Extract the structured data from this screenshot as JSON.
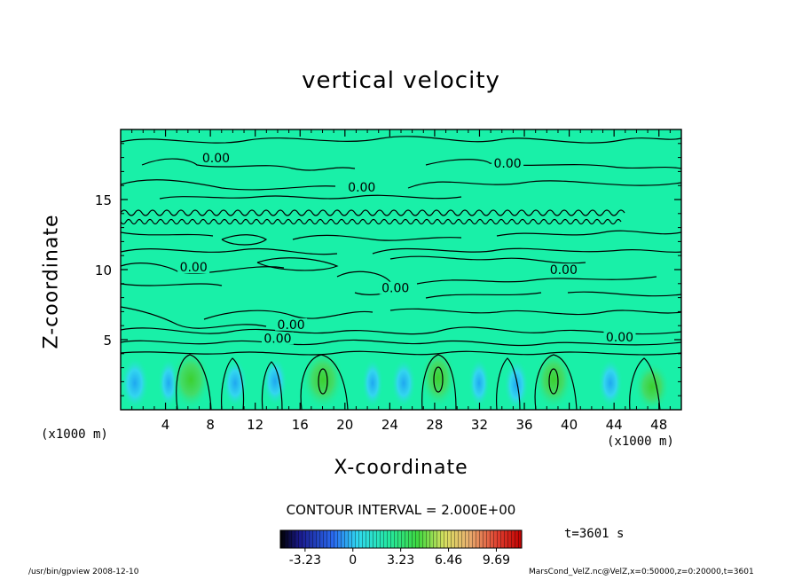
{
  "colors": {
    "field": "#19f0a8",
    "contour": "#000000",
    "negative": "#2fd3f0",
    "positive": "#4fd84f"
  },
  "chart_data": {
    "type": "heatmap",
    "title": "vertical velocity",
    "xlabel": "X-coordinate",
    "ylabel": "Z-coordinate",
    "x_unit": "(x1000 m)",
    "xlim": [
      0,
      50
    ],
    "ylim": [
      0,
      20
    ],
    "xticks": [
      4,
      8,
      12,
      16,
      20,
      24,
      28,
      32,
      36,
      40,
      44,
      48
    ],
    "yticks": [
      5,
      10,
      15
    ],
    "contour_labels": [
      {
        "text": "0.00",
        "x": 8.5,
        "y": 17.8
      },
      {
        "text": "0.00",
        "x": 21.5,
        "y": 15.7
      },
      {
        "text": "0.00",
        "x": 34.5,
        "y": 17.4
      },
      {
        "text": "0.00",
        "x": 6.5,
        "y": 10.0
      },
      {
        "text": "0.00",
        "x": 24.5,
        "y": 8.5
      },
      {
        "text": "0.00",
        "x": 39.5,
        "y": 9.8
      },
      {
        "text": "0.00",
        "x": 14.0,
        "y": 4.9
      },
      {
        "text": "0.00",
        "x": 15.2,
        "y": 5.9
      },
      {
        "text": "0.00",
        "x": 44.5,
        "y": 5.0
      }
    ],
    "colorbar": {
      "ticks": [
        "-3.23",
        "0",
        "3.23",
        "6.46",
        "9.69"
      ],
      "min": -4.9,
      "max": 11.4
    },
    "contour_interval": "CONTOUR INTERVAL = 2.000E+00",
    "time": "t=3601 s"
  },
  "footer": {
    "left": "/usr/bin/gpview   2008-12-10",
    "right": "MarsCond_VelZ.nc@VelZ,x=0:50000,z=0:20000,t=3601"
  }
}
